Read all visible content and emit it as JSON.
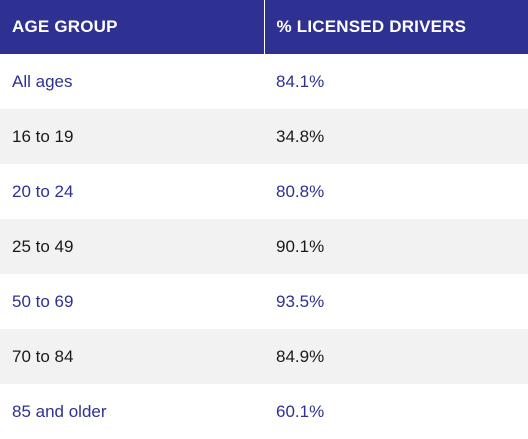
{
  "chart_data": {
    "type": "table",
    "columns": [
      "AGE GROUP",
      "% LICENSED DRIVERS"
    ],
    "rows": [
      [
        "All ages",
        "84.1%"
      ],
      [
        "16 to 19",
        "34.8%"
      ],
      [
        "20 to 24",
        "80.8%"
      ],
      [
        "25 to 49",
        "90.1%"
      ],
      [
        "50 to 69",
        "93.5%"
      ],
      [
        "70 to 84",
        "84.9%"
      ],
      [
        "85 and older",
        "60.1%"
      ]
    ],
    "values": [
      84.1,
      34.8,
      80.8,
      90.1,
      93.5,
      84.9,
      60.1
    ]
  },
  "colors": {
    "header_bg": "#2e3192",
    "header_text": "#ffffff",
    "row_odd_bg": "#ffffff",
    "row_odd_text": "#2e3192",
    "row_even_bg": "#f2f2f2",
    "row_even_text": "#1a1a1a"
  }
}
